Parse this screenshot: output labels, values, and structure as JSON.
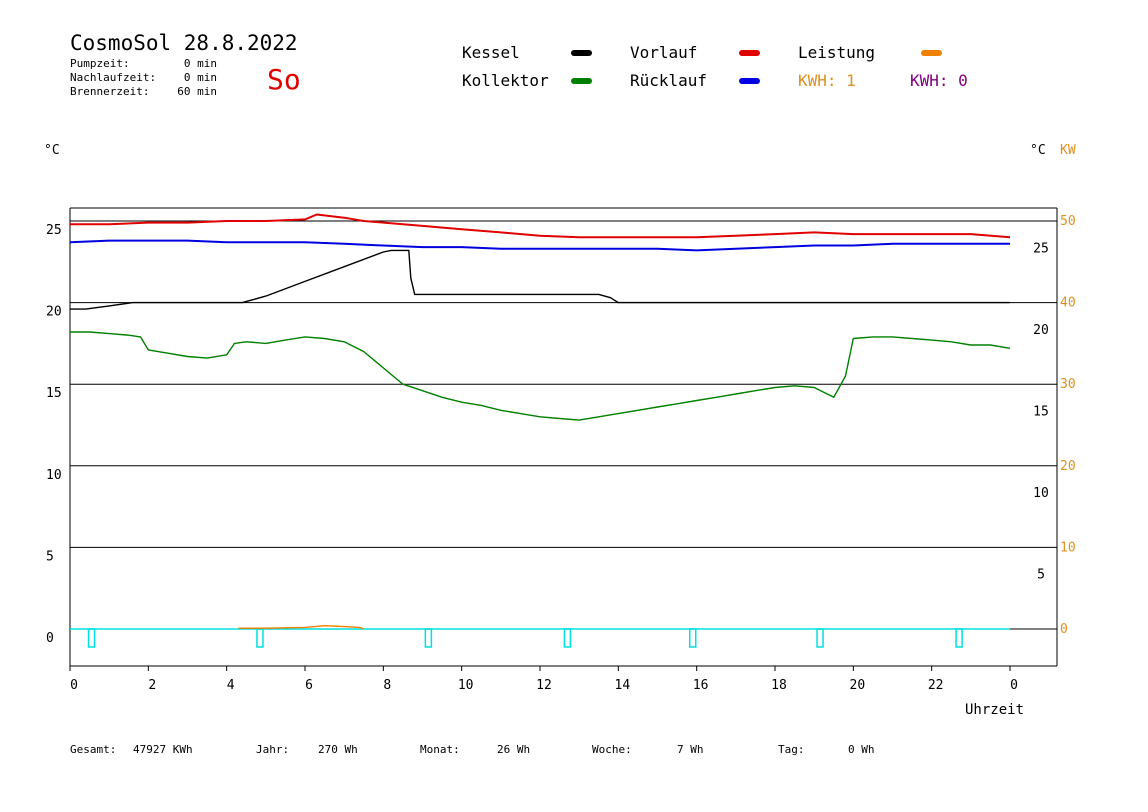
{
  "header": {
    "title": "CosmoSol 28.8.2022",
    "day": "So",
    "info": [
      {
        "label": "Pumpzeit:",
        "value": "0 min"
      },
      {
        "label": "Nachlaufzeit:",
        "value": "0 min"
      },
      {
        "label": "Brennerzeit:",
        "value": "60 min"
      }
    ]
  },
  "legend": {
    "kessel": "Kessel",
    "kollektor": "Kollektor",
    "vorlauf": "Vorlauf",
    "ruecklauf": "Rücklauf",
    "leistung": "Leistung",
    "kwh_orange": "KWH: 1",
    "kwh_purple": "KWH: 0"
  },
  "colors": {
    "kessel": "#000000",
    "kollektor": "#008000",
    "vorlauf": "#e00000",
    "ruecklauf": "#0000e0",
    "leistung": "#f08000",
    "kwh_orange": "#e09020",
    "kwh_purple": "#800080",
    "pump": "#00e0e0",
    "kw_axis": "#e09020",
    "day": "#e00000"
  },
  "axis_units": {
    "left": "°C",
    "right_c": "°C",
    "right_kw": "KW"
  },
  "footer": [
    {
      "label": "Gesamt:",
      "value": "47927 KWh"
    },
    {
      "label": "Jahr:",
      "value": "270 Wh"
    },
    {
      "label": "Monat:",
      "value": "26 Wh"
    },
    {
      "label": "Woche:",
      "value": "7 Wh"
    },
    {
      "label": "Tag:",
      "value": "0 Wh"
    }
  ],
  "chart_data": {
    "type": "line",
    "title": "CosmoSol 28.8.2022",
    "xlabel": "Uhrzeit",
    "ylabel": "°C",
    "xlim": [
      0,
      24
    ],
    "ylim": [
      -2,
      27
    ],
    "grid": true,
    "legend_position": "top",
    "x_ticks": [
      "0",
      "2",
      "4",
      "6",
      "8",
      "10",
      "12",
      "14",
      "16",
      "18",
      "20",
      "22",
      "0"
    ],
    "y_left_ticks": [
      0,
      5,
      10,
      15,
      20,
      25
    ],
    "y_right_c_ticks": [
      {
        "label": "5",
        "at": 4
      },
      {
        "label": "10",
        "at": 9
      },
      {
        "label": "15",
        "at": 14
      },
      {
        "label": "20",
        "at": 19
      },
      {
        "label": "25",
        "at": 24
      }
    ],
    "y_right_kw_ticks": [
      {
        "label": "0",
        "at": 0
      },
      {
        "label": "10",
        "at": 5
      },
      {
        "label": "20",
        "at": 10
      },
      {
        "label": "30",
        "at": 15
      },
      {
        "label": "40",
        "at": 20
      },
      {
        "label": "50",
        "at": 25
      }
    ],
    "series": [
      {
        "name": "Vorlauf",
        "x": [
          0,
          1,
          2,
          3,
          4,
          5,
          6,
          6.3,
          7,
          7.5,
          8,
          9,
          10,
          11,
          12,
          13,
          14,
          15,
          16,
          17,
          18,
          19,
          20,
          21,
          22,
          23,
          24
        ],
        "y": [
          24.8,
          24.8,
          24.9,
          24.9,
          25.0,
          25.0,
          25.1,
          25.4,
          25.2,
          25.0,
          24.9,
          24.7,
          24.5,
          24.3,
          24.1,
          24.0,
          24.0,
          24.0,
          24.0,
          24.1,
          24.2,
          24.3,
          24.2,
          24.2,
          24.2,
          24.2,
          24.0
        ]
      },
      {
        "name": "Rücklauf",
        "x": [
          0,
          1,
          2,
          3,
          4,
          5,
          6,
          7,
          8,
          9,
          10,
          11,
          12,
          13,
          14,
          15,
          16,
          17,
          18,
          19,
          20,
          21,
          22,
          23,
          24
        ],
        "y": [
          23.7,
          23.8,
          23.8,
          23.8,
          23.7,
          23.7,
          23.7,
          23.6,
          23.5,
          23.4,
          23.4,
          23.3,
          23.3,
          23.3,
          23.3,
          23.3,
          23.2,
          23.3,
          23.4,
          23.5,
          23.5,
          23.6,
          23.6,
          23.6,
          23.6
        ]
      },
      {
        "name": "Kessel",
        "x": [
          0,
          0.4,
          1.0,
          1.6,
          1.7,
          4.3,
          4.4,
          5.0,
          6.0,
          7.0,
          8.0,
          8.2,
          8.65,
          8.7,
          8.8,
          9.0,
          12.0,
          13.5,
          13.8,
          14.0,
          24.0
        ],
        "y": [
          19.6,
          19.6,
          19.8,
          20.0,
          20.0,
          20.0,
          20.0,
          20.4,
          21.3,
          22.2,
          23.1,
          23.2,
          23.2,
          21.5,
          20.5,
          20.5,
          20.5,
          20.5,
          20.3,
          20.0,
          20.0
        ]
      },
      {
        "name": "Kollektor",
        "x": [
          0,
          0.5,
          1.0,
          1.5,
          1.8,
          2.0,
          2.5,
          3.0,
          3.5,
          4.0,
          4.2,
          4.5,
          5.0,
          5.5,
          6.0,
          6.5,
          7.0,
          7.5,
          8.0,
          8.5,
          9.0,
          9.5,
          10.0,
          10.5,
          11.0,
          11.5,
          12.0,
          12.5,
          13.0,
          13.5,
          14.0,
          14.5,
          15.0,
          15.5,
          16.0,
          16.5,
          17.0,
          17.5,
          18.0,
          18.5,
          19.0,
          19.5,
          19.8,
          20.0,
          20.5,
          21.0,
          21.5,
          22.0,
          22.5,
          23.0,
          23.5,
          24.0
        ],
        "y": [
          18.2,
          18.2,
          18.1,
          18.0,
          17.9,
          17.1,
          16.9,
          16.7,
          16.6,
          16.8,
          17.5,
          17.6,
          17.5,
          17.7,
          17.9,
          17.8,
          17.6,
          17.0,
          16.0,
          15.0,
          14.6,
          14.2,
          13.9,
          13.7,
          13.4,
          13.2,
          13.0,
          12.9,
          12.8,
          13.0,
          13.2,
          13.4,
          13.6,
          13.8,
          14.0,
          14.2,
          14.4,
          14.6,
          14.8,
          14.9,
          14.8,
          14.2,
          15.5,
          17.8,
          17.9,
          17.9,
          17.8,
          17.7,
          17.6,
          17.4,
          17.4,
          17.2
        ]
      },
      {
        "name": "Leistung",
        "x": [
          4.3,
          5.0,
          6.0,
          6.5,
          7.0,
          7.4,
          7.5
        ],
        "y": [
          0.05,
          0.05,
          0.1,
          0.2,
          0.15,
          0.1,
          0
        ]
      }
    ],
    "pump_markers_x": [
      0.55,
      4.85,
      9.15,
      12.7,
      15.9,
      19.15,
      22.7
    ]
  }
}
